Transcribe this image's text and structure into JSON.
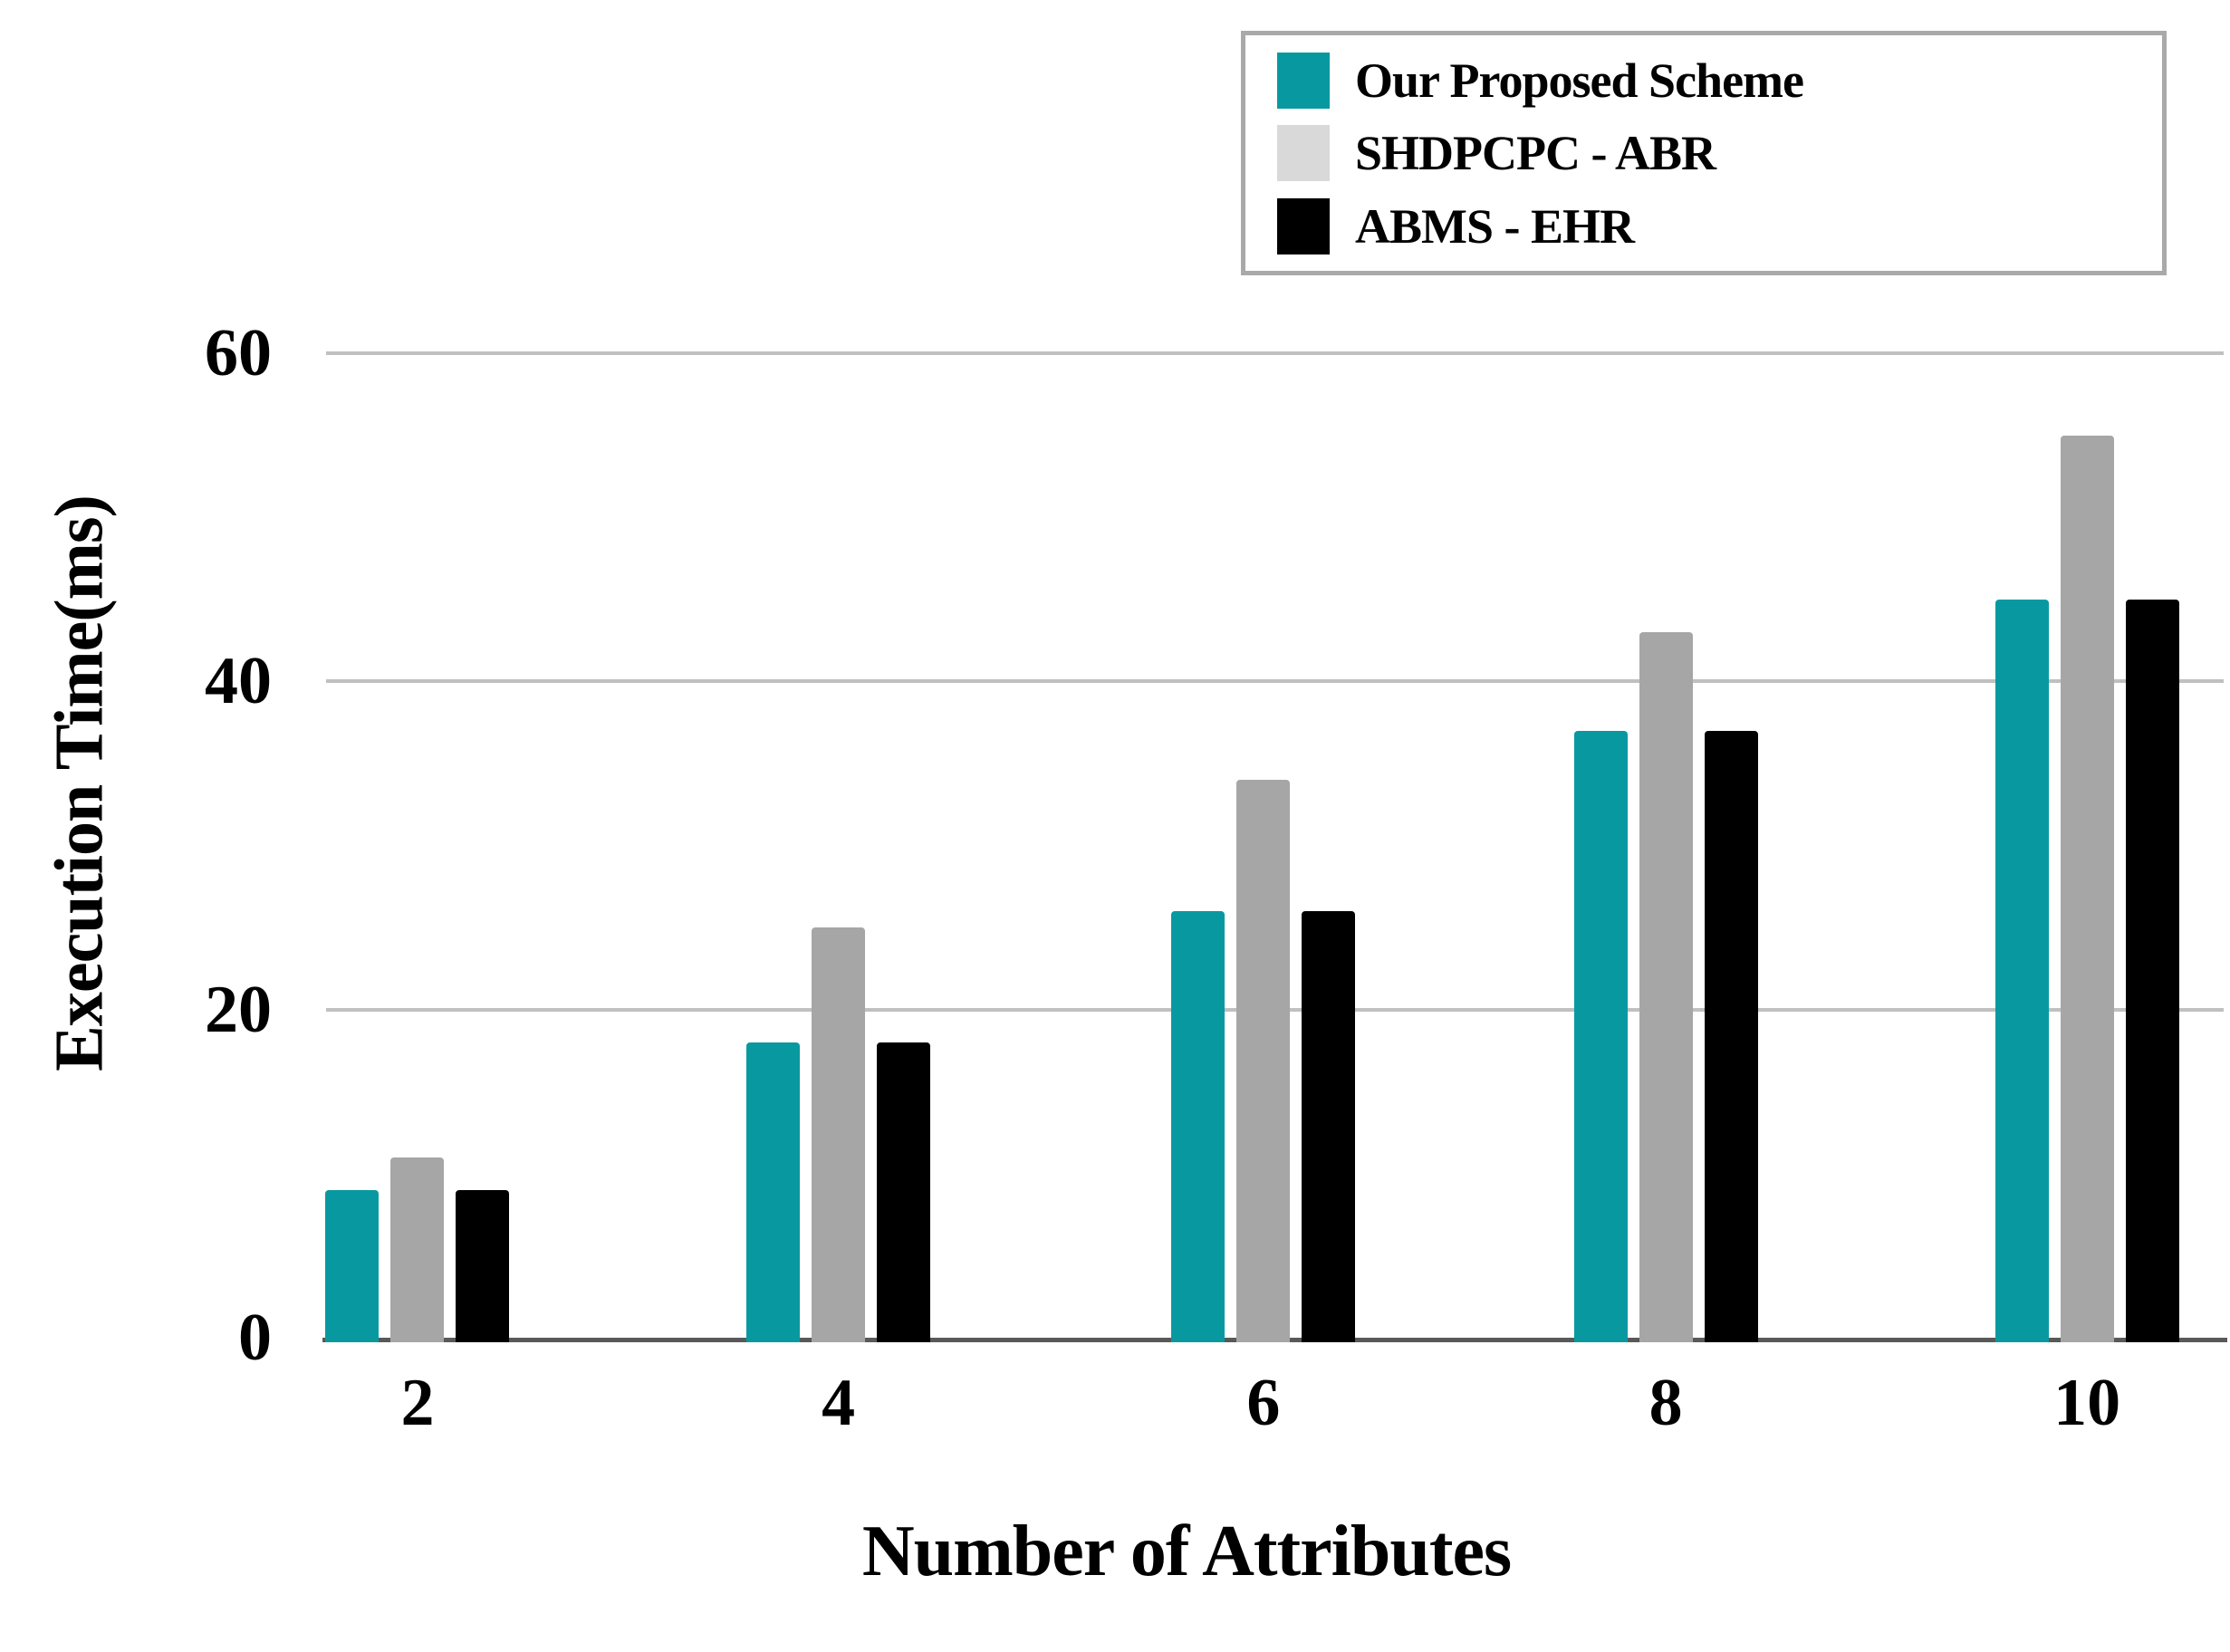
{
  "chart_data": {
    "type": "bar",
    "title": "",
    "xlabel": "Number of Attributes",
    "ylabel": "Execution Time(ms)",
    "categories": [
      "2",
      "4",
      "6",
      "8",
      "10"
    ],
    "series": [
      {
        "name": "Our Proposed Scheme",
        "color": "#0899A0",
        "legend_color": "#0899A0",
        "values": [
          9,
          18,
          26,
          37,
          45
        ]
      },
      {
        "name": "SHDPCPC - ABR",
        "color": "#A6A6A6",
        "legend_color": "#D9D9D9",
        "values": [
          11,
          25,
          34,
          43,
          55
        ]
      },
      {
        "name": "ABMS - EHR",
        "color": "#000000",
        "legend_color": "#000000",
        "values": [
          9,
          18,
          26,
          37,
          45
        ]
      }
    ],
    "ylim": [
      0,
      60
    ],
    "yticks": [
      0,
      20,
      40,
      60
    ],
    "grid": "horizontal",
    "legend_position": "top-right"
  },
  "colors": {
    "gridline": "#C0C0C0",
    "baseline": "#595959",
    "legend_border": "#A9A9A9",
    "background": "#FFFFFF"
  }
}
